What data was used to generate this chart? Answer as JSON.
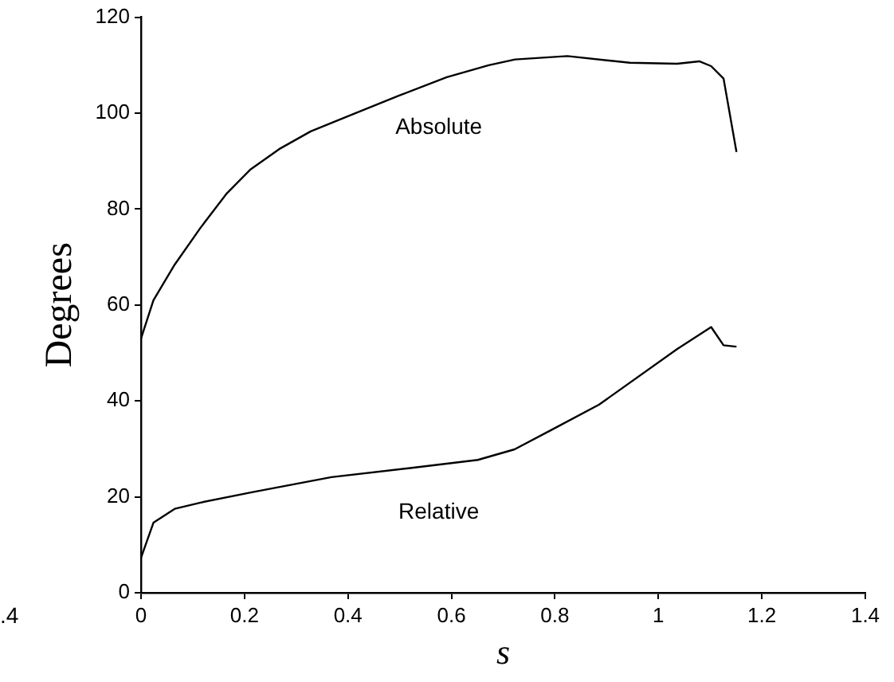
{
  "chart_data": {
    "type": "line",
    "xlabel": "s",
    "ylabel": "Degrees",
    "xlim": [
      0,
      1.4
    ],
    "ylim": [
      0,
      120
    ],
    "xticks": [
      0,
      0.2,
      0.4,
      0.6,
      0.8,
      1,
      1.2,
      1.4
    ],
    "yticks": [
      0,
      20,
      40,
      60,
      80,
      100,
      120
    ],
    "grid": false,
    "legend": false,
    "marker": "none",
    "line_style": "solid",
    "annotations": [
      ".4"
    ],
    "series": [
      {
        "name": "Absolute",
        "color": "#000000",
        "x": [
          0,
          0.024,
          0.065,
          0.115,
          0.166,
          0.212,
          0.267,
          0.328,
          0.399,
          0.5,
          0.591,
          0.672,
          0.723,
          0.824,
          0.945,
          1.036,
          1.079,
          1.102,
          1.126,
          1.151
        ],
        "values": [
          53,
          61,
          68.4,
          76.1,
          83.3,
          88.3,
          92.5,
          96.2,
          99.3,
          103.7,
          107.5,
          110,
          111.2,
          111.9,
          110.5,
          110.3,
          110.8,
          109.8,
          107.2,
          91.9
        ]
      },
      {
        "name": "Relative",
        "color": "#000000",
        "x": [
          0,
          0.024,
          0.065,
          0.115,
          0.216,
          0.368,
          0.52,
          0.651,
          0.722,
          0.794,
          0.885,
          1.036,
          1.102,
          1.126,
          1.151
        ],
        "values": [
          7.3,
          14.6,
          17.5,
          18.8,
          21,
          24.1,
          26,
          27.7,
          29.9,
          34,
          39.2,
          50.8,
          55.4,
          51.6,
          51.3
        ]
      }
    ]
  }
}
